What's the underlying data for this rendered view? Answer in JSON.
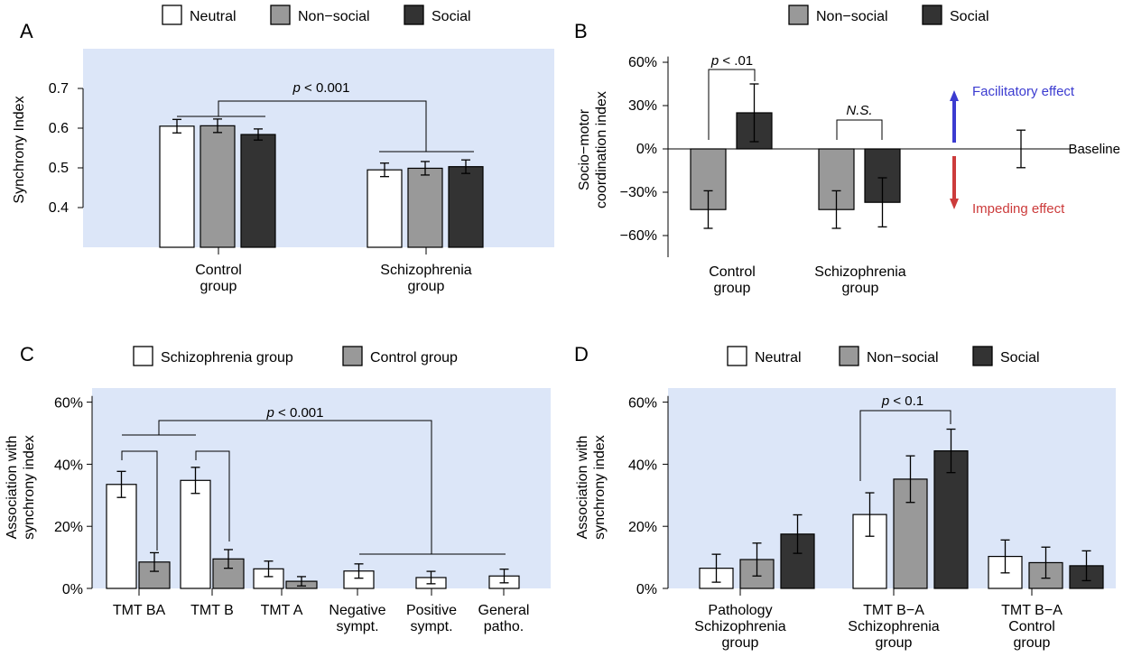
{
  "colors": {
    "panel_bg": "#dce6f8",
    "neutral": "#ffffff",
    "nonsocial": "#999999",
    "social": "#333333",
    "facilitatory": "#3b3bd0",
    "impeding": "#cc3b3b"
  },
  "chart_data": [
    {
      "type": "bar",
      "panel": "A",
      "legend": [
        "Neutral",
        "Non−social",
        "Social"
      ],
      "legend_placement": "top",
      "ylabel": "Synchrony Index",
      "ylim": [
        0.3,
        0.8
      ],
      "yticks": [
        "0.4",
        "0.5",
        "0.6",
        "0.7"
      ],
      "ytick_values": [
        0.4,
        0.5,
        0.6,
        0.7
      ],
      "categories": [
        [
          "Control",
          "group"
        ],
        [
          "Schizophrenia",
          "group"
        ]
      ],
      "series": [
        {
          "name": "Neutral",
          "values": [
            0.605,
            0.495
          ],
          "errors": [
            0.017,
            0.017
          ]
        },
        {
          "name": "Non−social",
          "values": [
            0.606,
            0.499
          ],
          "errors": [
            0.017,
            0.017
          ]
        },
        {
          "name": "Social",
          "values": [
            0.584,
            0.503
          ],
          "errors": [
            0.014,
            0.017
          ]
        }
      ],
      "annotation": {
        "p": "p",
        "rest": " < 0.001"
      },
      "grid": false
    },
    {
      "type": "bar",
      "panel": "B",
      "legend": [
        "Non−social",
        "Social"
      ],
      "legend_placement": "top",
      "ylabel": [
        "Socio−motor",
        "coordination index"
      ],
      "ylim": [
        -75,
        75
      ],
      "yticks": [
        "60%",
        "30%",
        "0%",
        "−30%",
        "−60%"
      ],
      "ytick_values": [
        60,
        30,
        0,
        -30,
        -60
      ],
      "categories": [
        [
          "Control",
          "group"
        ],
        [
          "Schizophrenia",
          "group"
        ]
      ],
      "series": [
        {
          "name": "Non−social",
          "values": [
            -42,
            -42
          ],
          "errors": [
            13,
            13
          ]
        },
        {
          "name": "Social",
          "values": [
            25,
            -37
          ],
          "errors": [
            20,
            17
          ]
        }
      ],
      "annotations": [
        {
          "p": "p",
          "rest": " < .01"
        },
        {
          "text": "N.S."
        }
      ],
      "arrows": {
        "up": "Facilitatory effect",
        "down": "Impeding effect"
      },
      "baseline_label": "Baseline",
      "baseline_error": 13,
      "grid": false
    },
    {
      "type": "bar",
      "panel": "C",
      "legend": [
        "Schizophrenia group",
        "Control group"
      ],
      "legend_placement": "top",
      "ylabel": [
        "Association with",
        "synchrony index"
      ],
      "ylim": [
        0,
        62
      ],
      "yticks": [
        "60%",
        "40%",
        "20%",
        "0%"
      ],
      "ytick_values": [
        60,
        40,
        20,
        0
      ],
      "categories": [
        [
          "TMT BA"
        ],
        [
          "TMT B"
        ],
        [
          "TMT A"
        ],
        [
          "Negative",
          "sympt."
        ],
        [
          "Positive",
          "sympt."
        ],
        [
          "General",
          "patho."
        ]
      ],
      "series": [
        {
          "name": "Schizophrenia group",
          "values": [
            33.5,
            34.8,
            6.3,
            5.6,
            3.5,
            4.0
          ],
          "errors": [
            4.2,
            4.2,
            2.5,
            2.3,
            2.0,
            2.2
          ]
        },
        {
          "name": "Control group",
          "values": [
            8.5,
            9.5,
            2.3,
            null,
            null,
            null
          ],
          "errors": [
            3.0,
            3.0,
            1.5,
            null,
            null,
            null
          ]
        }
      ],
      "annotation": {
        "p": "p",
        "rest": " < 0.001"
      },
      "grid": false
    },
    {
      "type": "bar",
      "panel": "D",
      "legend": [
        "Neutral",
        "Non−social",
        "Social"
      ],
      "legend_placement": "top",
      "ylabel": [
        "Association with",
        "synchrony index"
      ],
      "ylim": [
        0,
        62
      ],
      "yticks": [
        "60%",
        "40%",
        "20%",
        "0%"
      ],
      "ytick_values": [
        60,
        40,
        20,
        0
      ],
      "categories": [
        [
          "Pathology",
          "Schizophrenia",
          "group"
        ],
        [
          "TMT B−A",
          "Schizophrenia",
          "group"
        ],
        [
          "TMT B−A",
          "Control",
          "group"
        ]
      ],
      "series": [
        {
          "name": "Neutral",
          "values": [
            6.5,
            23.8,
            10.3
          ],
          "errors": [
            4.5,
            7.0,
            5.3
          ]
        },
        {
          "name": "Non−social",
          "values": [
            9.3,
            35.2,
            8.3
          ],
          "errors": [
            5.3,
            7.5,
            5.0
          ]
        },
        {
          "name": "Social",
          "values": [
            17.5,
            44.3,
            7.3
          ],
          "errors": [
            6.2,
            7.0,
            4.8
          ]
        }
      ],
      "annotation": {
        "p": "p",
        "rest": " < 0.1"
      },
      "grid": false
    }
  ],
  "panel_letters": [
    "A",
    "B",
    "C",
    "D"
  ]
}
